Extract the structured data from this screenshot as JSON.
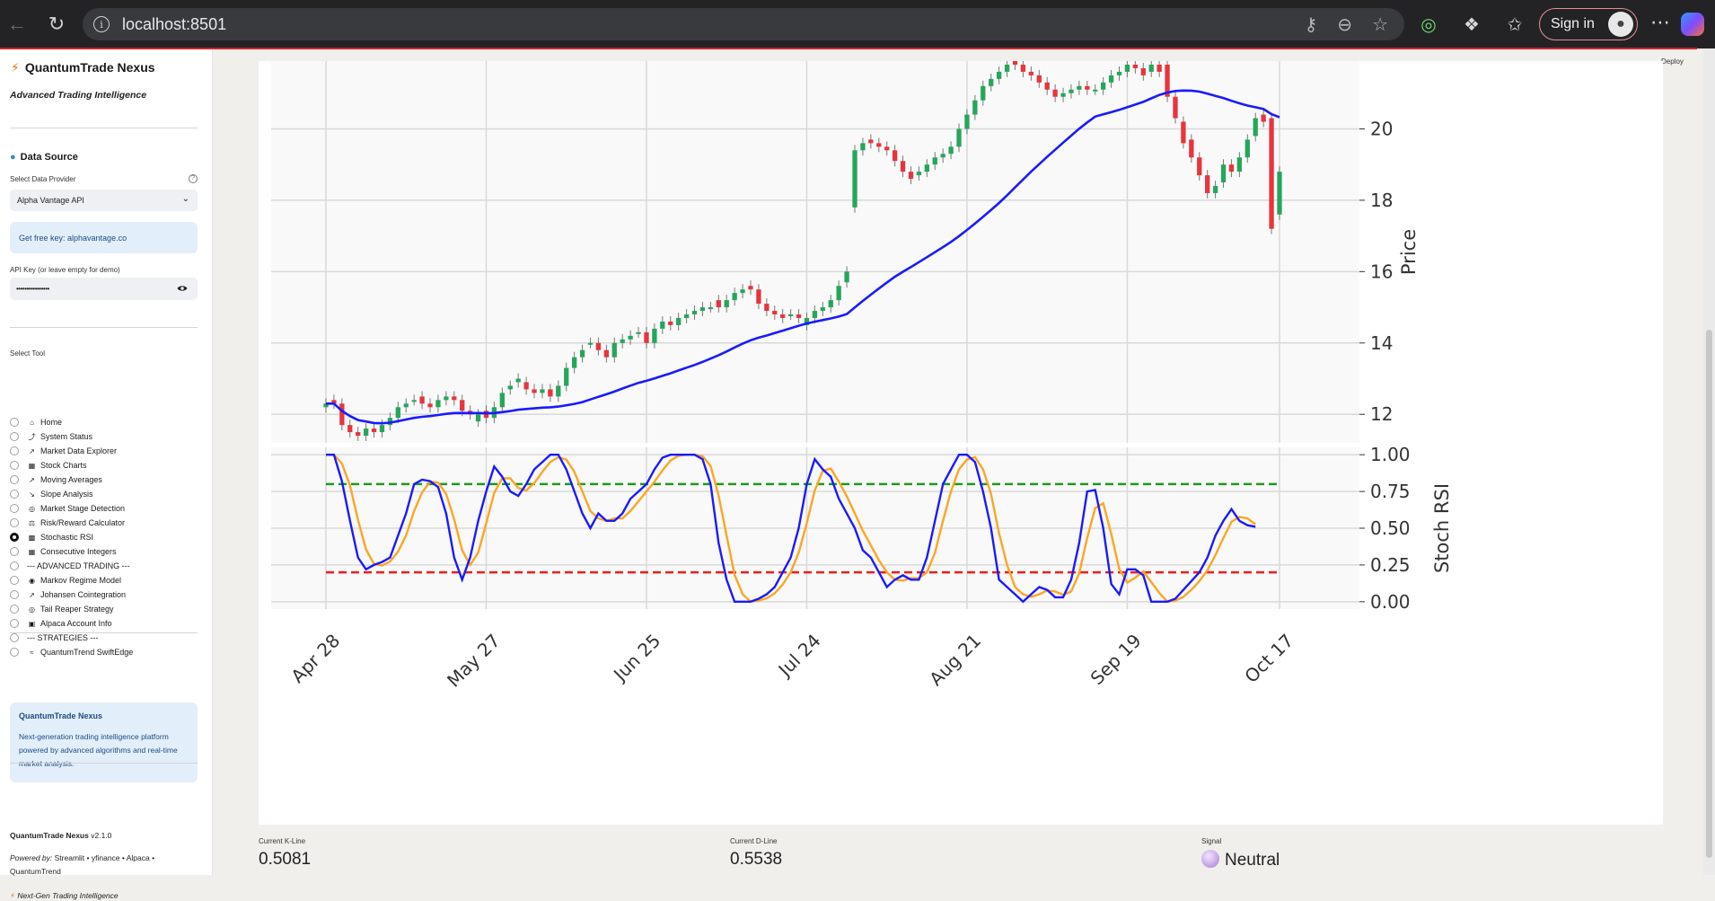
{
  "browser": {
    "url": "localhost:8501",
    "sign_in": "Sign in"
  },
  "sidebar": {
    "app_title": "QuantumTrade Nexus",
    "tagline": "Advanced Trading Intelligence",
    "data_source_heading": "Data Source",
    "provider_label": "Select Data Provider",
    "provider_value": "Alpha Vantage API",
    "free_key_note": "Get free key: alphavantage.co",
    "api_key_label": "API Key (or leave empty for demo)",
    "api_key_value": "••••••••••••••••",
    "select_tool_label": "Select Tool",
    "tools": [
      {
        "label": "Home",
        "icon": "house-icon",
        "selected": false
      },
      {
        "label": "System Status",
        "icon": "signal-icon",
        "selected": false
      },
      {
        "label": "Market Data Explorer",
        "icon": "chart-up-icon",
        "selected": false
      },
      {
        "label": "Stock Charts",
        "icon": "chart-icon",
        "selected": false
      },
      {
        "label": "Moving Averages",
        "icon": "chart-up-icon",
        "selected": false
      },
      {
        "label": "Slope Analysis",
        "icon": "chart-down-icon",
        "selected": false
      },
      {
        "label": "Market Stage Detection",
        "icon": "target-icon",
        "selected": false
      },
      {
        "label": "Risk/Reward Calculator",
        "icon": "scale-icon",
        "selected": false
      },
      {
        "label": "Stochastic RSI",
        "icon": "bar-chart-icon",
        "selected": true
      },
      {
        "label": "Consecutive Integers",
        "icon": "numbers-icon",
        "selected": false
      },
      {
        "label": "--- ADVANCED TRADING ---",
        "icon": "",
        "selected": false
      },
      {
        "label": "Markov Regime Model",
        "icon": "robot-icon",
        "selected": false
      },
      {
        "label": "Johansen Cointegration",
        "icon": "chart-up-icon",
        "selected": false
      },
      {
        "label": "Tail Reaper Strategy",
        "icon": "target-icon",
        "selected": false
      },
      {
        "label": "Alpaca Account Info",
        "icon": "briefcase-icon",
        "selected": false
      },
      {
        "label": "--- STRATEGIES ---",
        "icon": "",
        "selected": false
      },
      {
        "label": "QuantumTrend SwiftEdge",
        "icon": "wave-icon",
        "selected": false
      }
    ],
    "about": {
      "title": "QuantumTrade Nexus",
      "desc": "Next-generation trading intelligence platform powered by advanced algorithms and real-time market analysis."
    },
    "footer": {
      "name": "QuantumTrade Nexus",
      "version": "v2.1.0",
      "powered_label": "Powered by:",
      "powered_value": "Streamlit • yfinance • Alpaca • QuantumTrend",
      "slogan": "Next-Gen Trading Intelligence"
    }
  },
  "header": {
    "deploy": "Deploy"
  },
  "chart_data": {
    "type": "candlestick+line",
    "x_ticks": [
      "Apr 28",
      "May 27",
      "Jun 25",
      "Jul 24",
      "Aug 21",
      "Sep 19",
      "Oct 17"
    ],
    "price_panel": {
      "ylabel": "Price",
      "yticks": [
        12,
        14,
        16,
        18,
        20
      ],
      "ylim": [
        11.2,
        21.9
      ],
      "ma_color": "#1a1aff",
      "up_color": "#26a65b",
      "down_color": "#e8343e",
      "closes": [
        12.3,
        12.3,
        11.7,
        11.5,
        11.4,
        11.6,
        11.5,
        11.7,
        11.9,
        12.2,
        12.3,
        12.4,
        12.3,
        12.2,
        12.4,
        12.5,
        12.4,
        12.1,
        12.0,
        12.0,
        11.9,
        12.2,
        12.6,
        12.8,
        13.0,
        12.7,
        12.6,
        12.7,
        12.5,
        12.8,
        13.3,
        13.6,
        13.8,
        14.0,
        13.8,
        13.6,
        14.0,
        14.1,
        14.2,
        14.3,
        14.0,
        14.4,
        14.6,
        14.5,
        14.7,
        14.8,
        14.9,
        15.0,
        15.0,
        15.0,
        15.2,
        15.4,
        15.5,
        15.5,
        15.1,
        14.9,
        14.8,
        14.7,
        14.8,
        14.7,
        14.7,
        14.9,
        15.0,
        15.2,
        15.6,
        16.0,
        19.4,
        19.6,
        19.6,
        19.5,
        19.4,
        19.1,
        18.8,
        18.6,
        18.8,
        19.0,
        19.2,
        19.3,
        19.5,
        20.0,
        20.4,
        20.8,
        21.2,
        21.4,
        21.6,
        21.8,
        21.8,
        21.6,
        21.5,
        21.3,
        21.1,
        20.9,
        21.0,
        21.1,
        21.2,
        21.1,
        21.1,
        21.3,
        21.5,
        21.6,
        21.8,
        21.7,
        21.5,
        21.8,
        21.6,
        20.9,
        20.3,
        19.6,
        19.2,
        18.7,
        18.2,
        18.4,
        19.0,
        18.8,
        19.2,
        19.7,
        20.3,
        20.2,
        17.2,
        18.8
      ],
      "opens": [
        12.2,
        12.4,
        12.3,
        11.7,
        11.5,
        11.4,
        11.6,
        11.5,
        11.7,
        11.9,
        12.2,
        12.4,
        12.5,
        12.3,
        12.2,
        12.4,
        12.5,
        12.4,
        12.1,
        11.8,
        12.1,
        11.9,
        12.2,
        12.7,
        12.9,
        12.9,
        12.7,
        12.6,
        12.7,
        12.5,
        12.8,
        13.3,
        13.6,
        14.0,
        14.0,
        13.8,
        13.6,
        14.0,
        14.1,
        14.3,
        14.3,
        14.0,
        14.4,
        14.6,
        14.5,
        14.7,
        14.8,
        14.9,
        15.0,
        15.2,
        15.0,
        15.2,
        15.4,
        15.6,
        15.5,
        15.1,
        14.9,
        14.8,
        14.8,
        14.8,
        14.5,
        14.7,
        14.9,
        15.0,
        15.2,
        15.7,
        17.8,
        19.4,
        19.7,
        19.6,
        19.5,
        19.4,
        19.1,
        18.8,
        18.7,
        18.8,
        19.0,
        19.2,
        19.3,
        19.5,
        20.0,
        20.4,
        20.8,
        21.2,
        21.4,
        21.6,
        21.9,
        21.8,
        21.6,
        21.5,
        21.3,
        21.1,
        20.9,
        21.0,
        21.1,
        21.2,
        21.1,
        21.1,
        21.3,
        21.5,
        21.6,
        21.8,
        21.7,
        21.6,
        21.8,
        21.8,
        20.9,
        20.2,
        19.7,
        19.2,
        18.7,
        18.2,
        18.5,
        19.0,
        18.8,
        19.2,
        19.8,
        20.4,
        20.3,
        17.6
      ]
    },
    "stoch_panel": {
      "ylabel": "Stoch RSI",
      "yticks": [
        "0.00",
        "0.25",
        "0.50",
        "0.75",
        "1.00"
      ],
      "ylim": [
        -0.05,
        1.05
      ],
      "overbought": 0.8,
      "oversold": 0.2,
      "k_color": "#1a1aff",
      "d_color": "#ffa521",
      "k": [
        1.0,
        1.0,
        0.82,
        0.55,
        0.3,
        0.22,
        0.25,
        0.27,
        0.3,
        0.45,
        0.6,
        0.8,
        0.83,
        0.82,
        0.78,
        0.6,
        0.3,
        0.15,
        0.3,
        0.55,
        0.75,
        0.92,
        0.85,
        0.75,
        0.72,
        0.8,
        0.9,
        0.95,
        1.0,
        1.0,
        0.9,
        0.75,
        0.6,
        0.5,
        0.6,
        0.55,
        0.55,
        0.6,
        0.7,
        0.75,
        0.8,
        0.9,
        0.98,
        1.0,
        1.0,
        1.0,
        1.0,
        0.97,
        0.8,
        0.4,
        0.15,
        0.0,
        0.0,
        0.0,
        0.02,
        0.05,
        0.1,
        0.2,
        0.3,
        0.5,
        0.8,
        0.97,
        0.9,
        0.85,
        0.7,
        0.6,
        0.5,
        0.35,
        0.3,
        0.2,
        0.1,
        0.15,
        0.18,
        0.15,
        0.15,
        0.3,
        0.55,
        0.8,
        0.9,
        1.0,
        1.0,
        0.95,
        0.75,
        0.5,
        0.15,
        0.1,
        0.05,
        0.0,
        0.05,
        0.1,
        0.08,
        0.03,
        0.03,
        0.15,
        0.4,
        0.75,
        0.76,
        0.5,
        0.12,
        0.05,
        0.22,
        0.22,
        0.18,
        0.0,
        0.0,
        0.0,
        0.02,
        0.08,
        0.14,
        0.2,
        0.3,
        0.45,
        0.55,
        0.63,
        0.55,
        0.52,
        0.51
      ]
    }
  },
  "metrics": [
    {
      "label": "Current K-Line",
      "value": "0.5081"
    },
    {
      "label": "Current D-Line",
      "value": "0.5538"
    },
    {
      "label": "Signal",
      "value": "Neutral"
    }
  ]
}
